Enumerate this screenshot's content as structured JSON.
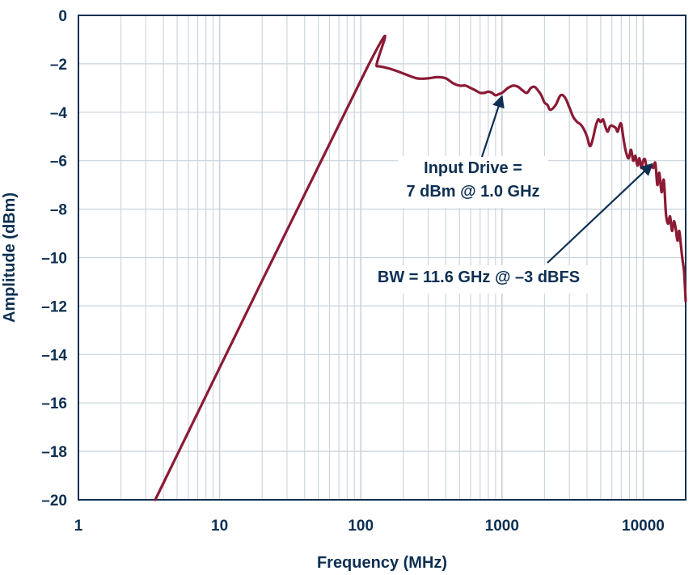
{
  "chart_data": {
    "type": "line",
    "title": "",
    "xlabel": "Frequency (MHz)",
    "ylabel": "Amplitude (dBm)",
    "x_scale": "log",
    "xlim": [
      1,
      20000
    ],
    "ylim": [
      -20,
      0
    ],
    "x_ticks": [
      1,
      10,
      100,
      1000,
      10000
    ],
    "x_tick_labels": [
      "1",
      "10",
      "100",
      "1000",
      "10000"
    ],
    "y_ticks": [
      0,
      -2,
      -4,
      -6,
      -8,
      -10,
      -12,
      -14,
      -16,
      -18,
      -20
    ],
    "y_tick_labels": [
      "0",
      "–2",
      "–4",
      "–6",
      "–8",
      "–10",
      "–12",
      "–14",
      "–16",
      "–18",
      "–20"
    ],
    "grid": true,
    "line_color": "#8b1a35",
    "grid_color": "#c9d3db",
    "text_color": "#0d2f52",
    "series": [
      {
        "x": [
          3.5,
          110,
          130,
          160,
          200,
          250,
          300,
          350,
          400,
          450,
          500,
          550,
          600,
          650,
          700,
          750,
          800,
          850,
          900,
          950,
          1000,
          1050,
          1100,
          1200,
          1300,
          1400,
          1500,
          1600,
          1700,
          1800,
          1900,
          2000,
          2100,
          2200,
          2400,
          2600,
          2800,
          3000,
          3200,
          3400,
          3600,
          3800,
          4000,
          4200,
          4400,
          4600,
          4800,
          5000,
          5200,
          5400,
          5600,
          5800,
          6000,
          6200,
          6400,
          6600,
          6800,
          7000,
          7300,
          7600,
          7900,
          8200,
          8500,
          8800,
          9100,
          9400,
          9700,
          10000,
          10300,
          10600,
          11000,
          11400,
          11800,
          12200,
          12600,
          13000,
          13500,
          14000,
          14500,
          15000,
          15500,
          16000,
          16500,
          17000,
          17500,
          18000,
          18500,
          19000,
          19500,
          20000
        ],
        "y": [
          -20,
          -2.2,
          -2.1,
          -2.2,
          -2.4,
          -2.6,
          -2.6,
          -2.55,
          -2.6,
          -2.8,
          -2.9,
          -2.9,
          -3.0,
          -3.1,
          -3.2,
          -3.2,
          -3.15,
          -3.2,
          -3.3,
          -3.25,
          -3.2,
          -3.1,
          -3.0,
          -2.9,
          -2.95,
          -3.1,
          -3.2,
          -3.0,
          -2.95,
          -3.1,
          -3.3,
          -3.6,
          -3.7,
          -3.9,
          -3.7,
          -3.3,
          -3.4,
          -3.8,
          -4.2,
          -4.4,
          -4.5,
          -4.7,
          -5.0,
          -5.4,
          -5.1,
          -4.6,
          -4.3,
          -4.4,
          -4.3,
          -4.6,
          -4.8,
          -4.6,
          -4.55,
          -4.6,
          -4.65,
          -4.8,
          -4.55,
          -4.5,
          -5.2,
          -5.7,
          -5.9,
          -5.55,
          -6.0,
          -5.8,
          -6.2,
          -5.9,
          -6.3,
          -6.0,
          -5.95,
          -6.3,
          -6.4,
          -6.2,
          -6.3,
          -6.1,
          -7.0,
          -6.5,
          -7.3,
          -6.8,
          -8.2,
          -8.6,
          -8.3,
          -8.9,
          -8.5,
          -8.8,
          -9.3,
          -8.9,
          -9.5,
          -10.1,
          -10.6,
          -11.8
        ]
      }
    ],
    "annotations": [
      {
        "lines": [
          "Input Drive =",
          "7 dBm @ 1.0 GHz"
        ],
        "target": [
          1000,
          -3.2
        ]
      },
      {
        "lines": [
          "BW = 11.6 GHz @ –3 dBFS"
        ],
        "target": [
          11600,
          -6.0
        ]
      }
    ]
  }
}
